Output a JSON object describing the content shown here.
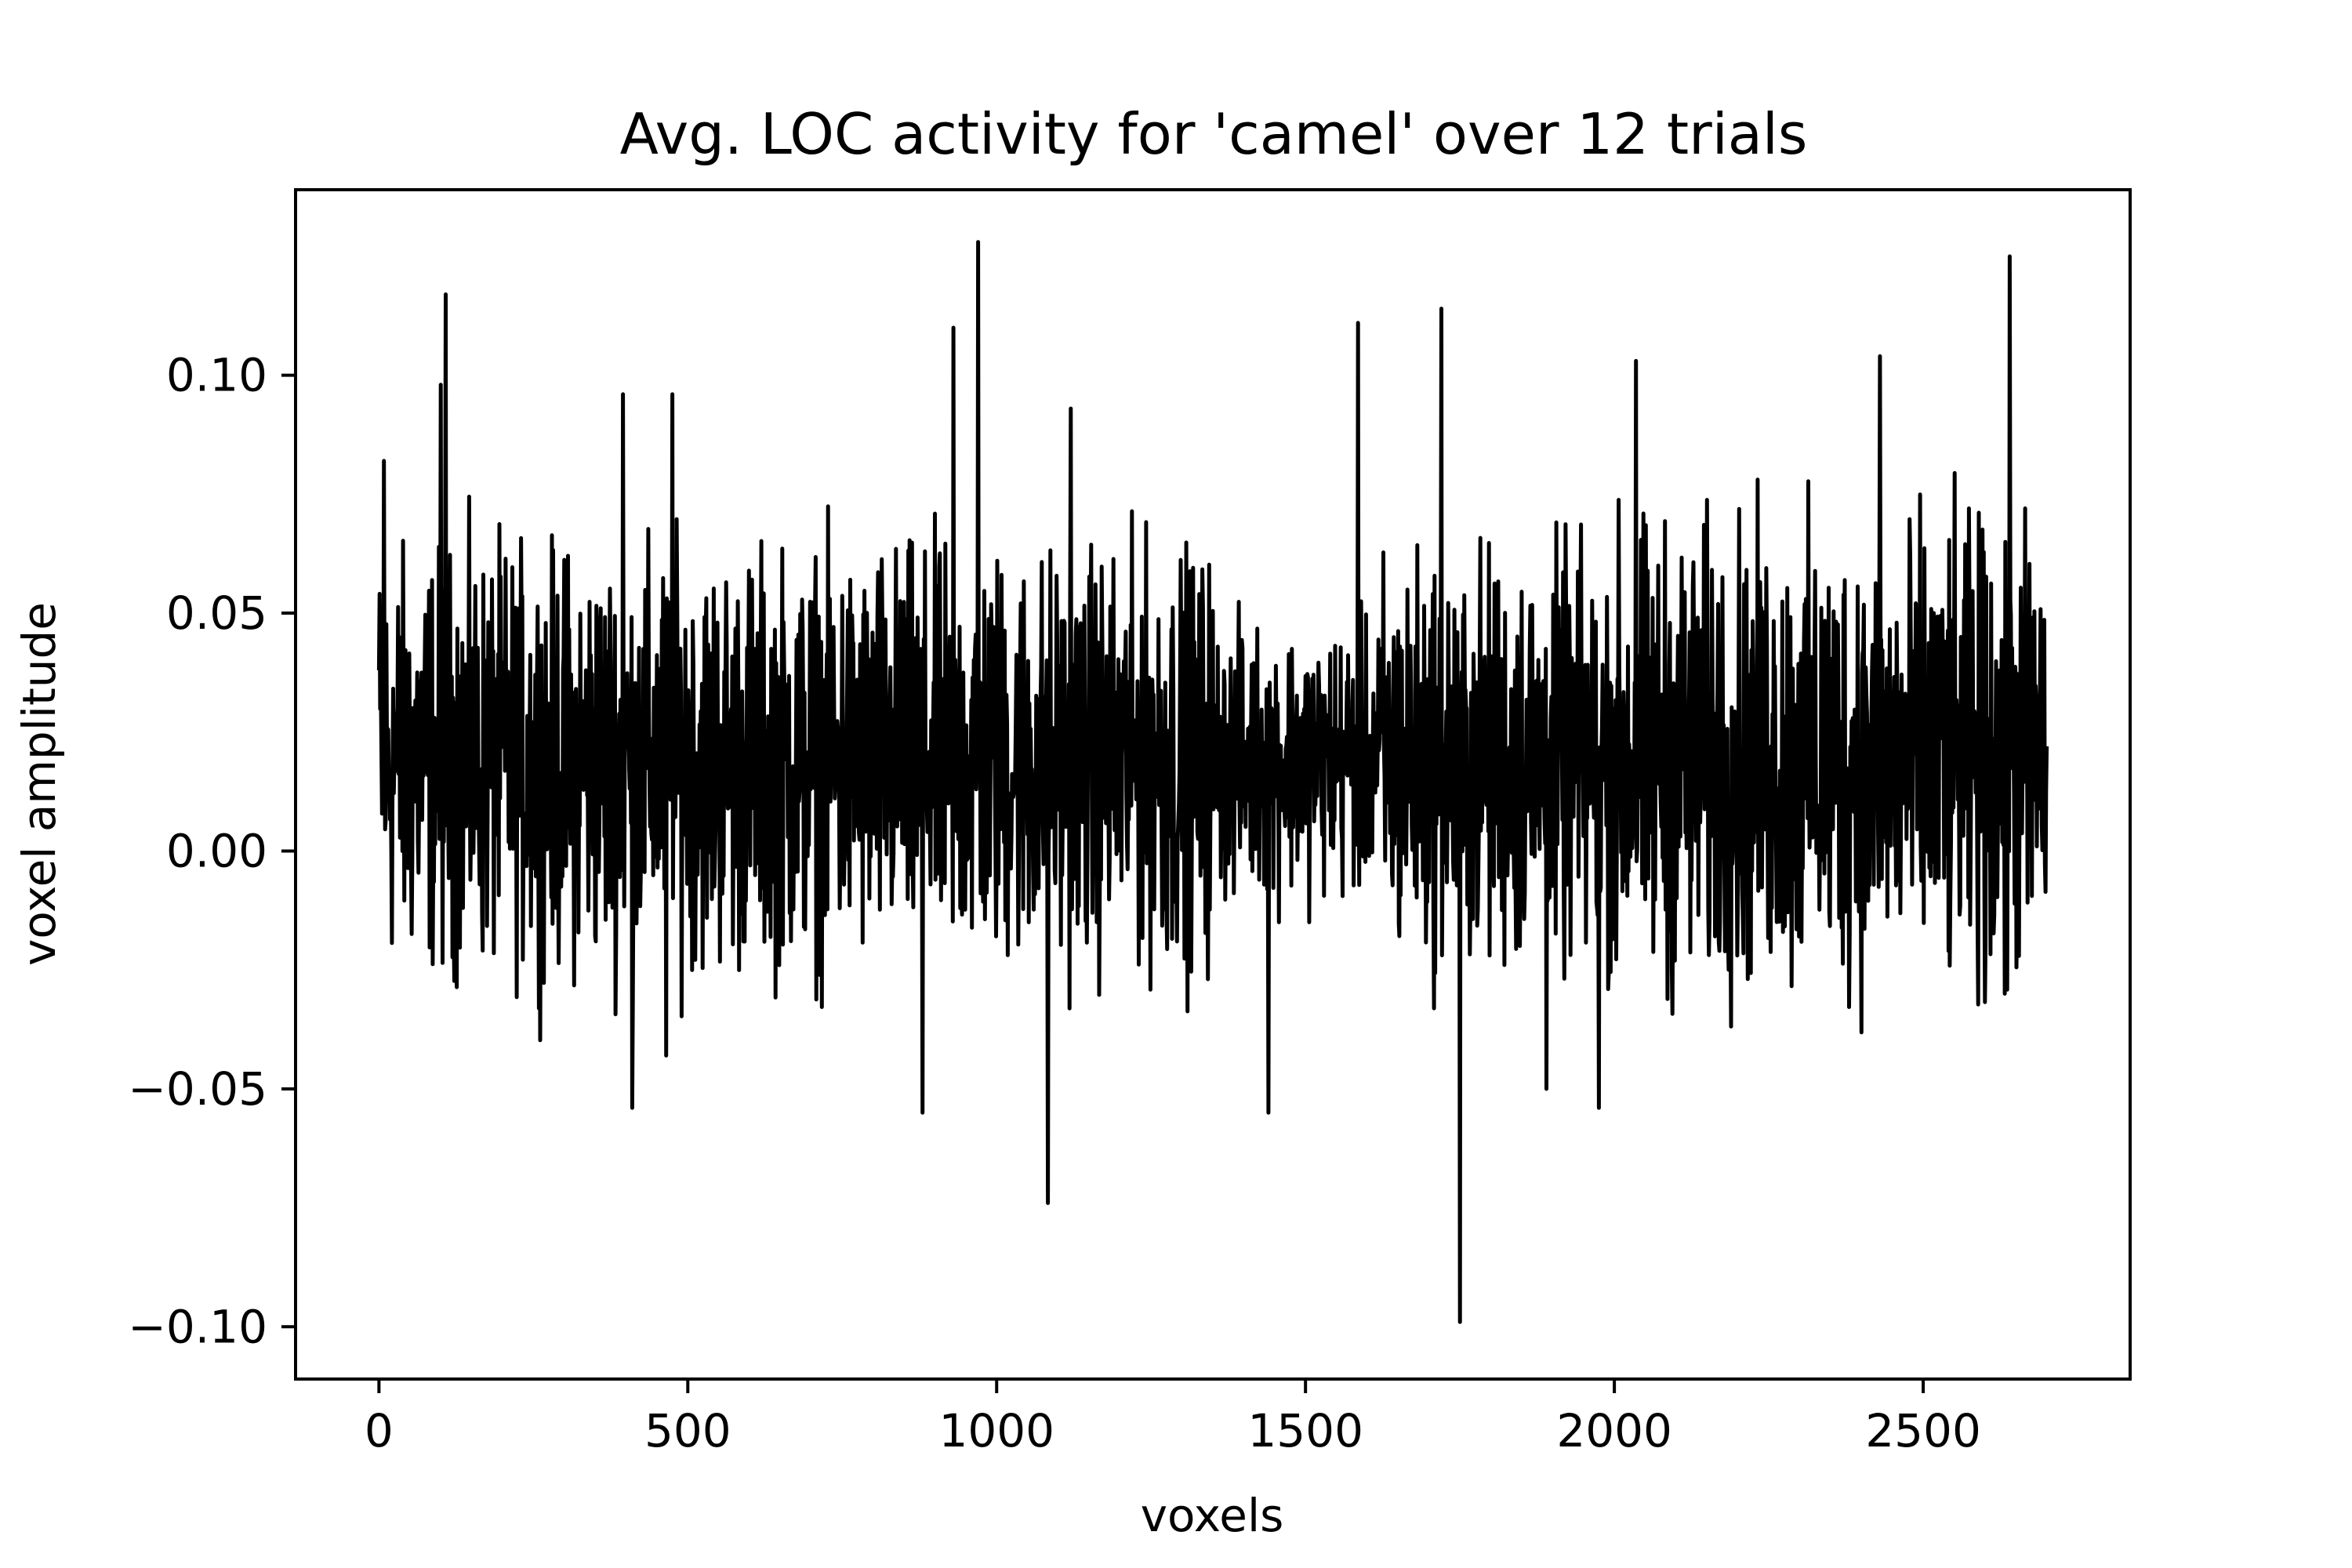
{
  "chart_data": {
    "type": "line",
    "title": "Avg. LOC activity for 'camel' over 12 trials",
    "xlabel": "voxels",
    "ylabel": "voxel amplitude",
    "xlim": [
      -135,
      2835
    ],
    "ylim": [
      -0.111,
      0.139
    ],
    "x_ticks": [
      {
        "value": 0,
        "label": "0"
      },
      {
        "value": 500,
        "label": "500"
      },
      {
        "value": 1000,
        "label": "1000"
      },
      {
        "value": 1500,
        "label": "1500"
      },
      {
        "value": 2000,
        "label": "2000"
      },
      {
        "value": 2500,
        "label": "2500"
      }
    ],
    "y_ticks": [
      {
        "value": -0.1,
        "label": "−0.10"
      },
      {
        "value": -0.05,
        "label": "−0.05"
      },
      {
        "value": 0.0,
        "label": "0.00"
      },
      {
        "value": 0.05,
        "label": "0.05"
      },
      {
        "value": 0.1,
        "label": "0.10"
      }
    ],
    "grid": false,
    "series": [
      {
        "color": "#000000",
        "x_range": [
          0,
          2700
        ],
        "num_points": 2701,
        "peaks": [
          {
            "x": 0,
            "y": 0.038
          },
          {
            "x": 8,
            "y": 0.082
          },
          {
            "x": 100,
            "y": 0.098
          },
          {
            "x": 108,
            "y": 0.117
          },
          {
            "x": 395,
            "y": 0.096
          },
          {
            "x": 410,
            "y": -0.054
          },
          {
            "x": 465,
            "y": -0.043
          },
          {
            "x": 475,
            "y": 0.096
          },
          {
            "x": 880,
            "y": -0.055
          },
          {
            "x": 930,
            "y": 0.11
          },
          {
            "x": 970,
            "y": 0.128
          },
          {
            "x": 1083,
            "y": -0.074
          },
          {
            "x": 1120,
            "y": 0.093
          },
          {
            "x": 1440,
            "y": -0.055
          },
          {
            "x": 1585,
            "y": 0.111
          },
          {
            "x": 1720,
            "y": 0.114
          },
          {
            "x": 1750,
            "y": -0.099
          },
          {
            "x": 1890,
            "y": -0.05
          },
          {
            "x": 1975,
            "y": -0.054
          },
          {
            "x": 2035,
            "y": 0.103
          },
          {
            "x": 2430,
            "y": 0.104
          },
          {
            "x": 2640,
            "y": 0.125
          },
          {
            "x": 2632,
            "y": -0.03
          },
          {
            "x": 2700,
            "y": 0.022
          }
        ]
      }
    ]
  }
}
